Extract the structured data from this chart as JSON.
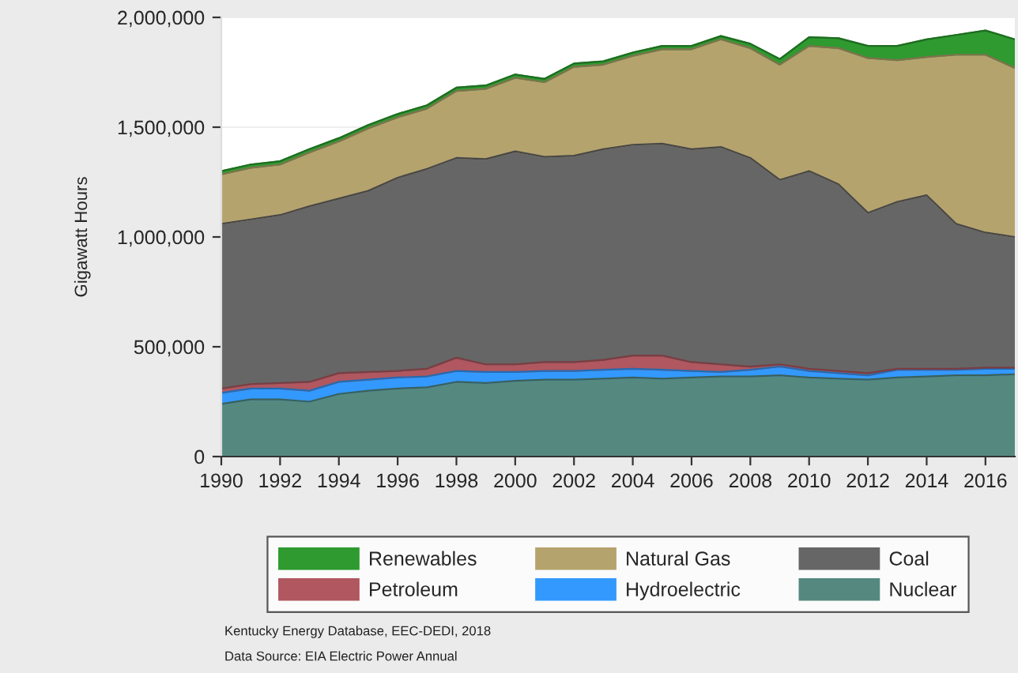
{
  "chart_data": {
    "type": "area",
    "stacked": true,
    "ylabel": "Gigawatt Hours",
    "x": [
      1990,
      1991,
      1992,
      1993,
      1994,
      1995,
      1996,
      1997,
      1998,
      1999,
      2000,
      2001,
      2002,
      2003,
      2004,
      2005,
      2006,
      2007,
      2008,
      2009,
      2010,
      2011,
      2012,
      2013,
      2014,
      2015,
      2016,
      2017
    ],
    "series": [
      {
        "name": "Nuclear",
        "color": "#55897f",
        "values": [
          240000,
          260000,
          260000,
          250000,
          285000,
          300000,
          310000,
          315000,
          340000,
          335000,
          345000,
          350000,
          350000,
          355000,
          360000,
          355000,
          360000,
          365000,
          365000,
          370000,
          360000,
          355000,
          350000,
          360000,
          365000,
          370000,
          370000,
          375000
        ]
      },
      {
        "name": "Hydroelectric",
        "color": "#3399ff",
        "values": [
          50000,
          50000,
          50000,
          50000,
          55000,
          50000,
          50000,
          50000,
          50000,
          50000,
          40000,
          40000,
          40000,
          40000,
          40000,
          40000,
          30000,
          20000,
          30000,
          40000,
          30000,
          25000,
          20000,
          35000,
          30000,
          25000,
          30000,
          25000
        ]
      },
      {
        "name": "Petroleum",
        "color": "#b0575f",
        "values": [
          20000,
          20000,
          25000,
          40000,
          40000,
          35000,
          30000,
          35000,
          60000,
          35000,
          35000,
          40000,
          40000,
          45000,
          60000,
          65000,
          40000,
          35000,
          15000,
          10000,
          10000,
          10000,
          10000,
          5000,
          5000,
          5000,
          5000,
          5000
        ]
      },
      {
        "name": "Coal",
        "color": "#666666",
        "values": [
          750000,
          750000,
          765000,
          800000,
          795000,
          825000,
          880000,
          910000,
          910000,
          935000,
          970000,
          935000,
          940000,
          960000,
          960000,
          965000,
          970000,
          990000,
          950000,
          840000,
          900000,
          850000,
          730000,
          760000,
          790000,
          660000,
          615000,
          595000
        ]
      },
      {
        "name": "Natural Gas",
        "color": "#b5a36e",
        "values": [
          225000,
          235000,
          230000,
          245000,
          260000,
          285000,
          275000,
          275000,
          305000,
          320000,
          335000,
          340000,
          405000,
          385000,
          405000,
          430000,
          455000,
          490000,
          500000,
          525000,
          570000,
          620000,
          705000,
          645000,
          630000,
          770000,
          810000,
          770000
        ]
      },
      {
        "name": "Renewables",
        "color": "#2e9a30",
        "values": [
          15000,
          15000,
          15000,
          15000,
          15000,
          15000,
          15000,
          15000,
          15000,
          15000,
          15000,
          15000,
          15000,
          15000,
          15000,
          15000,
          15000,
          15000,
          20000,
          25000,
          40000,
          45000,
          55000,
          65000,
          80000,
          90000,
          110000,
          130000
        ]
      }
    ],
    "xlim": [
      1990,
      2017
    ],
    "xticks": [
      1990,
      1992,
      1994,
      1996,
      1998,
      2000,
      2002,
      2004,
      2006,
      2008,
      2010,
      2012,
      2014,
      2016
    ],
    "ylim": [
      0,
      2000000
    ],
    "yticks": [
      {
        "value": 0,
        "label": "0"
      },
      {
        "value": 500000,
        "label": "500,000"
      },
      {
        "value": 1000000,
        "label": "1,000,000"
      },
      {
        "value": 1500000,
        "label": "1,500,000"
      },
      {
        "value": 2000000,
        "label": "2,000,000"
      }
    ],
    "grid": "y",
    "legend": "bottom",
    "annotations": [
      "Kentucky Energy Database, EEC-DEDI, 2018",
      "Data Source: EIA Electric Power Annual"
    ]
  }
}
